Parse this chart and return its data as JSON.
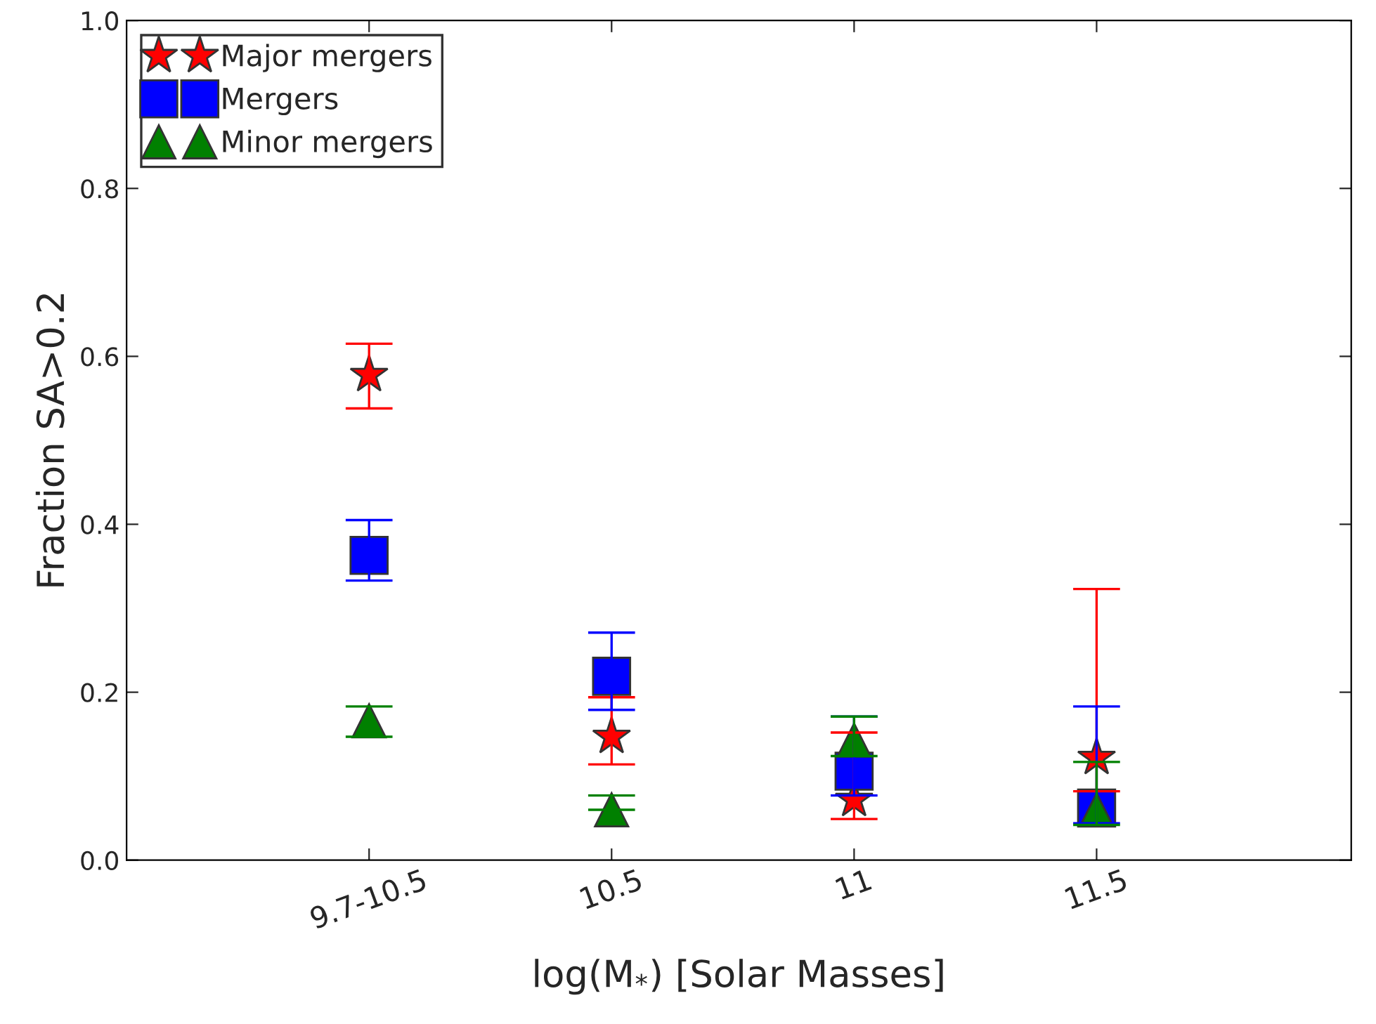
{
  "chart_data": {
    "type": "scatter",
    "xlabel": "log(M$_{*}$) [Solar Masses]",
    "ylabel": "Fraction SA>0.2",
    "categories": [
      "9.7-10.5",
      "10.5",
      "11",
      "11.5"
    ],
    "ylim": [
      0,
      1.0
    ],
    "yticks": [
      {
        "value": 0,
        "label": "0.0"
      },
      0.2,
      0.4,
      0.6,
      0.8,
      {
        "value": 1.0,
        "label": "1.0"
      }
    ],
    "grid": false,
    "legend": "top left",
    "series": [
      {
        "name": "Major mergers",
        "color": "#ff0000",
        "marker": "star",
        "values": [
          0.578,
          0.147,
          0.072,
          0.122
        ],
        "errors": [
          [
            0.538,
            0.615
          ],
          [
            0.114,
            0.194
          ],
          [
            0.049,
            0.152
          ],
          [
            0.082,
            0.323
          ]
        ]
      },
      {
        "name": "Mergers",
        "color": "#0000ff",
        "marker": "square",
        "values": [
          0.363,
          0.219,
          0.106,
          0.062
        ],
        "errors": [
          [
            0.333,
            0.405
          ],
          [
            0.179,
            0.271
          ],
          [
            0.077,
            0.171
          ],
          [
            0.044,
            0.183
          ]
        ]
      },
      {
        "name": "Minor mergers",
        "color": "#008000",
        "marker": "triangle",
        "values": [
          0.166,
          0.06,
          0.143,
          0.06
        ],
        "errors": [
          [
            0.147,
            0.183
          ],
          [
            0.06,
            0.077
          ],
          [
            0.124,
            0.171
          ],
          [
            0.042,
            0.117
          ]
        ]
      }
    ]
  }
}
